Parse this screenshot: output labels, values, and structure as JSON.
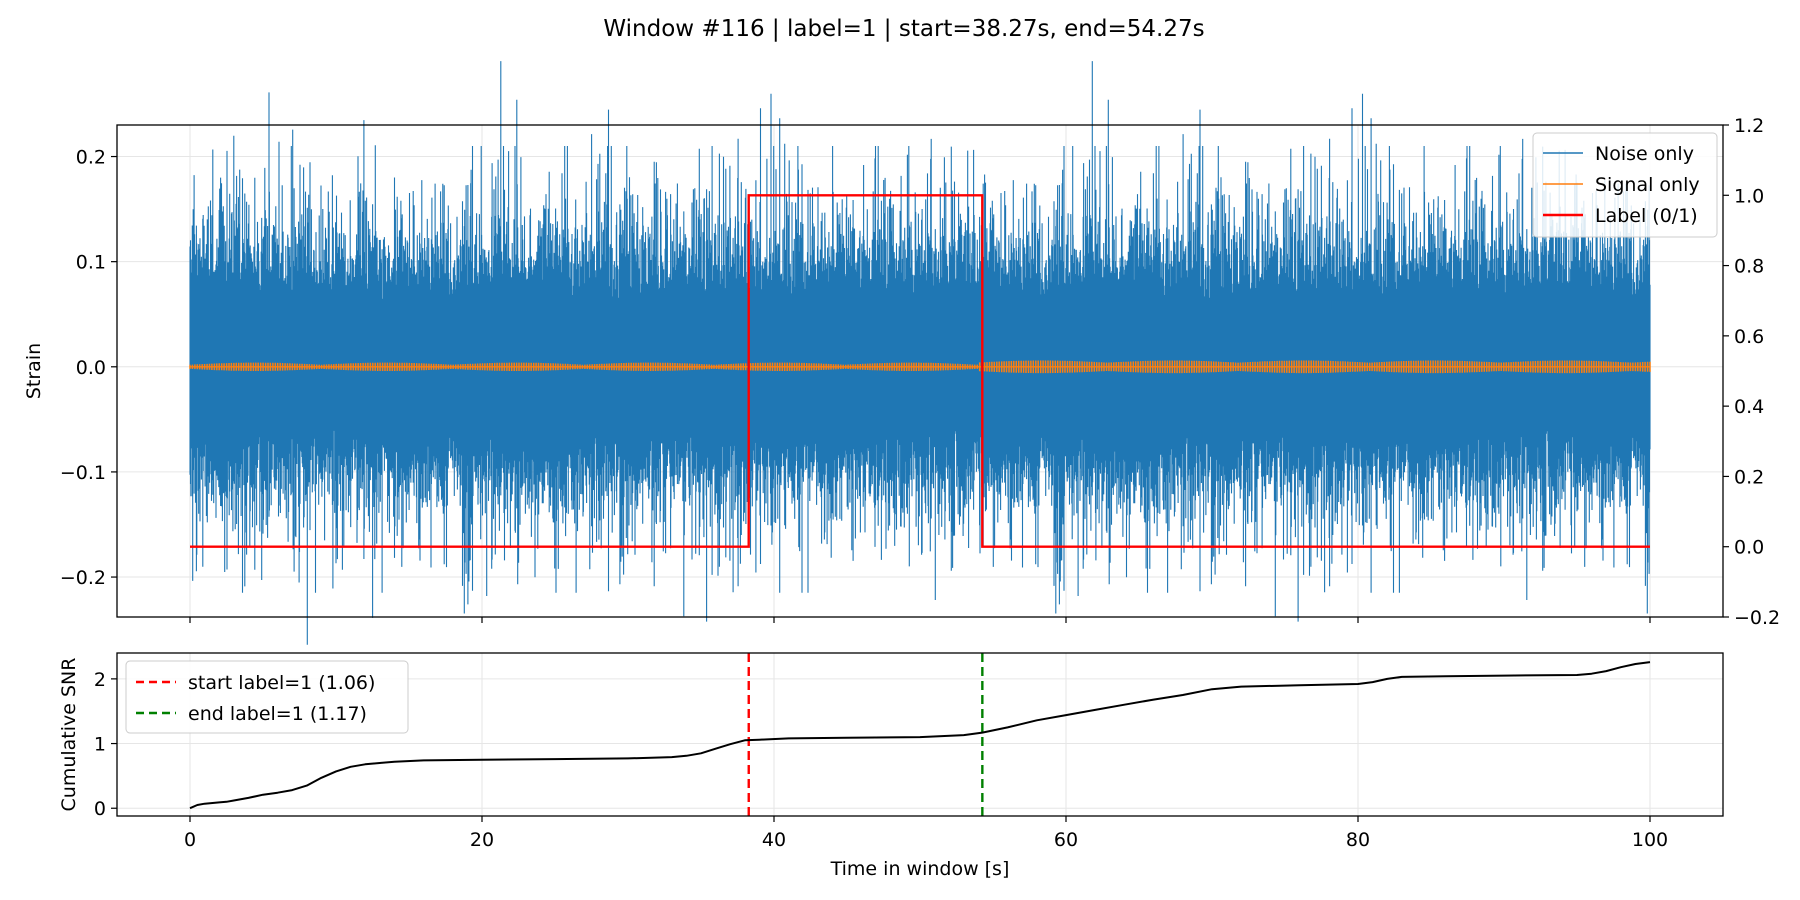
{
  "figure": {
    "title": "Window #116 | label=1 | start=38.27s, end=54.27s"
  },
  "chart_data": [
    {
      "type": "line",
      "panel": "top",
      "title": "",
      "xlabel": "",
      "ylabel": "Strain",
      "y2label": "",
      "xlim": [
        -5,
        105
      ],
      "ylim": [
        -0.238,
        0.23
      ],
      "y2lim": [
        -0.2,
        1.2
      ],
      "grid": true,
      "legend": "top-right",
      "yticks": [
        -0.2,
        -0.1,
        0.0,
        0.1,
        0.2
      ],
      "ytick_labels": [
        "−0.2",
        "−0.1",
        "0.0",
        "0.1",
        "0.2"
      ],
      "y2ticks": [
        -0.2,
        0.0,
        0.2,
        0.4,
        0.6,
        0.8,
        1.0,
        1.2
      ],
      "y2tick_labels": [
        "−0.2",
        "0.0",
        "0.2",
        "0.4",
        "0.6",
        "0.8",
        "1.0",
        "1.2"
      ],
      "xticks": [
        0,
        20,
        40,
        60,
        80,
        100
      ],
      "series": [
        {
          "name": "Noise only",
          "color": "#1f77b4",
          "style": "dense noise, amplitude about ±0.12, peaks to ±0.21",
          "x_range": [
            0,
            100
          ]
        },
        {
          "name": "Signal only",
          "color": "#ff7f0e",
          "style": "small-amplitude signal near 0, amplitude about ±0.006",
          "x_range": [
            0,
            100
          ]
        },
        {
          "name": "Label (0/1)",
          "color": "#ff0000",
          "axis": "right",
          "x": [
            0,
            38.27,
            38.27,
            54.27,
            54.27,
            100
          ],
          "y": [
            0,
            0,
            1,
            1,
            0,
            0
          ]
        }
      ]
    },
    {
      "type": "line",
      "panel": "bottom",
      "title": "",
      "xlabel": "Time in window [s]",
      "ylabel": "Cumulative SNR",
      "xlim": [
        -5,
        105
      ],
      "ylim": [
        -0.12,
        2.4
      ],
      "grid": true,
      "legend": "top-left",
      "xticks": [
        0,
        20,
        40,
        60,
        80,
        100
      ],
      "xtick_labels": [
        "0",
        "20",
        "40",
        "60",
        "80",
        "100"
      ],
      "yticks": [
        0,
        1,
        2
      ],
      "ytick_labels": [
        "0",
        "1",
        "2"
      ],
      "series": [
        {
          "name": "",
          "color": "#000000",
          "x": [
            0,
            0.5,
            1,
            2,
            2.5,
            3,
            4,
            5,
            6,
            7,
            8,
            9,
            10,
            11,
            12,
            13,
            14,
            16,
            20,
            25,
            30,
            33,
            34,
            35,
            36,
            37,
            38,
            39,
            41,
            45,
            50,
            53,
            54.27,
            56,
            58,
            60,
            62,
            64,
            66,
            68,
            70,
            72,
            76,
            80,
            81,
            82,
            83,
            86,
            90,
            95,
            96,
            97,
            98,
            99,
            100
          ],
          "y": [
            0,
            0.05,
            0.07,
            0.09,
            0.1,
            0.12,
            0.16,
            0.21,
            0.24,
            0.28,
            0.35,
            0.47,
            0.57,
            0.64,
            0.68,
            0.7,
            0.72,
            0.74,
            0.75,
            0.76,
            0.77,
            0.79,
            0.81,
            0.85,
            0.92,
            0.99,
            1.05,
            1.06,
            1.08,
            1.09,
            1.1,
            1.13,
            1.17,
            1.25,
            1.36,
            1.44,
            1.52,
            1.6,
            1.68,
            1.75,
            1.84,
            1.88,
            1.9,
            1.92,
            1.95,
            2.0,
            2.03,
            2.04,
            2.05,
            2.06,
            2.08,
            2.12,
            2.18,
            2.23,
            2.26
          ]
        }
      ],
      "vlines": [
        {
          "name": "start label=1 (1.06)",
          "x": 38.27,
          "color": "#ff0000",
          "style": "dashed"
        },
        {
          "name": "end label=1 (1.17)",
          "x": 54.27,
          "color": "#008000",
          "style": "dashed"
        }
      ]
    }
  ]
}
